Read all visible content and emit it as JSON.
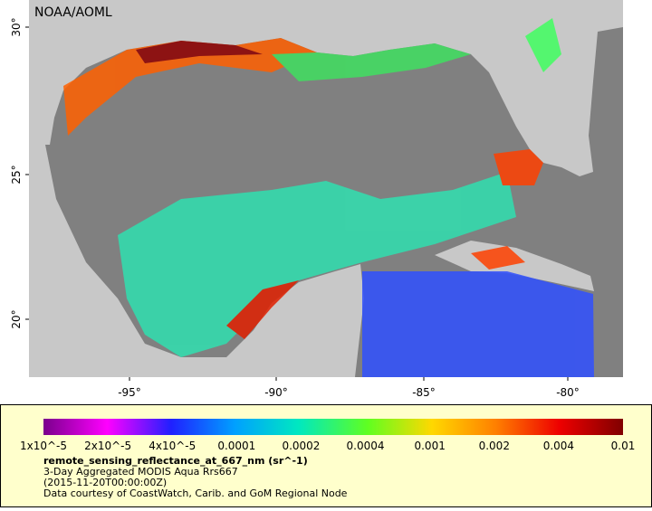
{
  "header": {
    "label": "NOAA/AOML"
  },
  "map": {
    "lat_labels": [
      "30°",
      "25°",
      "20°"
    ],
    "lon_labels": [
      "-95°",
      "-90°",
      "-85°",
      "-80°"
    ]
  },
  "colorbar": {
    "labels": [
      "1x10^-5",
      "2x10^-5",
      "4x10^-5",
      "0.0001",
      "0.0002",
      "0.0004",
      "0.001",
      "0.002",
      "0.004",
      "0.01"
    ]
  },
  "caption": {
    "variable": "remote_sensing_reflectance_at_667_nm (sr^-1)",
    "product": "3-Day Aggregated MODIS Aqua Rrs667",
    "time": "(2015-11-20T00:00:00Z)",
    "credit": "Data courtesy of CoastWatch, Carib. and GoM Regional Node"
  }
}
